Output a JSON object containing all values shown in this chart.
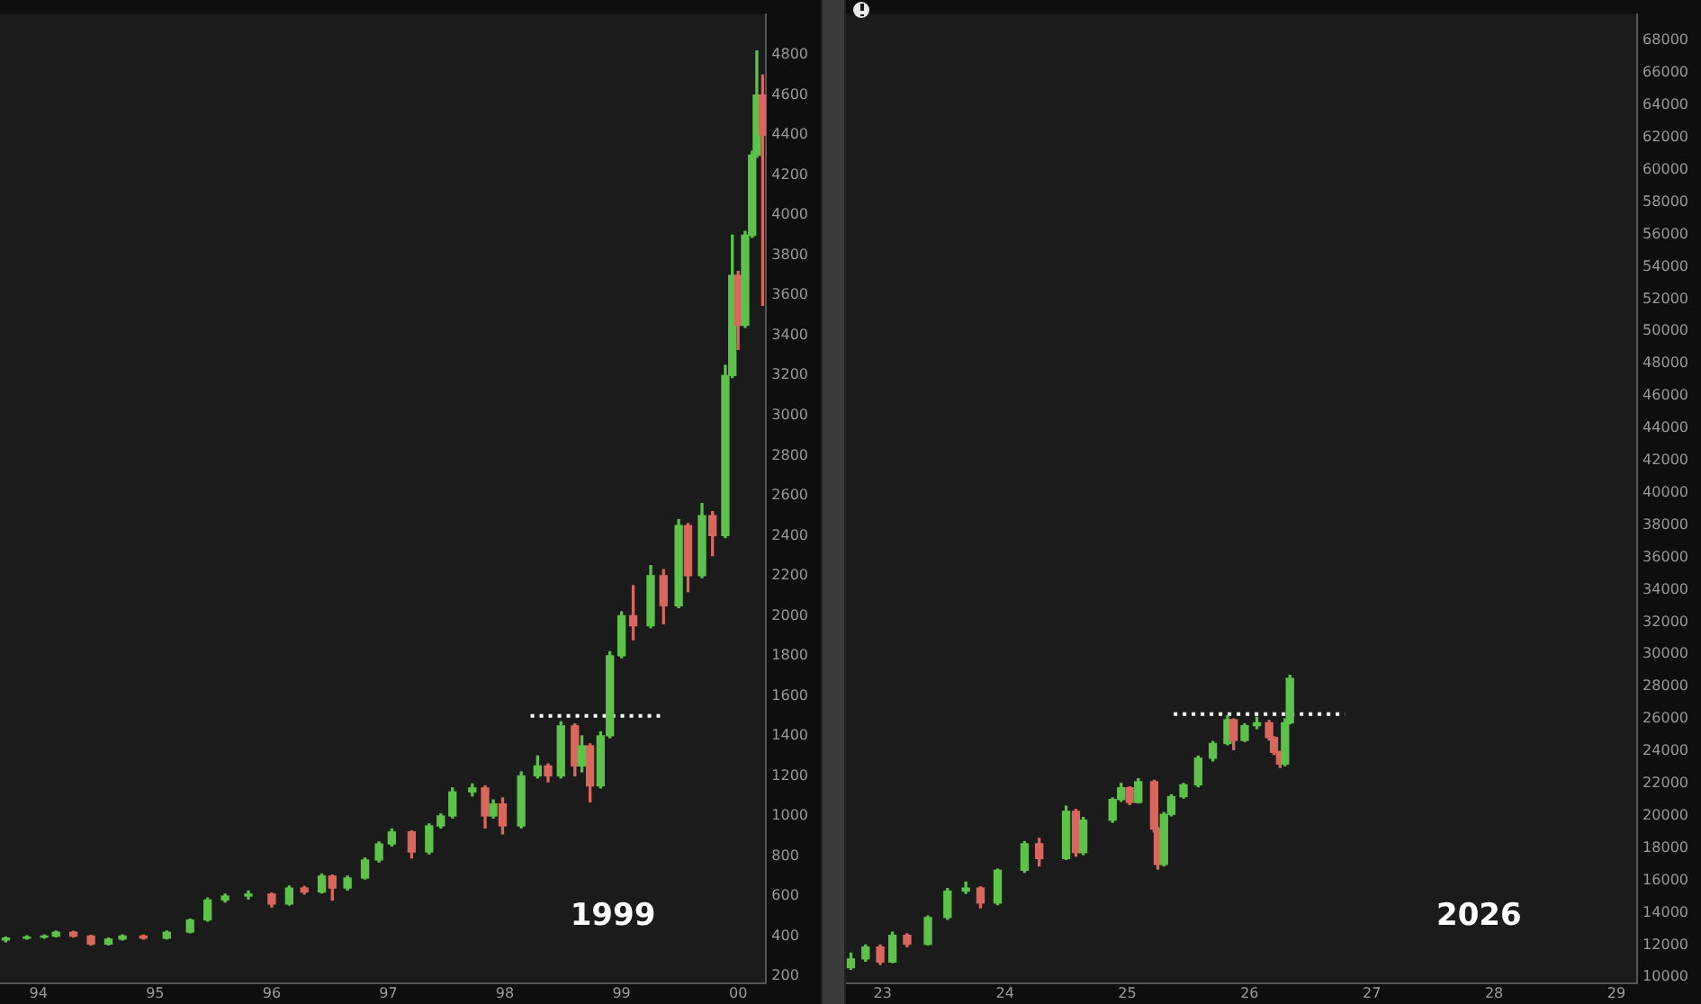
{
  "chart_data": [
    {
      "type": "candlestick",
      "x": [
        1993.72,
        1993.9,
        1994.05,
        1994.15,
        1994.3,
        1994.45,
        1994.6,
        1994.72,
        1994.9,
        1995.1,
        1995.3,
        1995.45,
        1995.6,
        1995.8,
        1996.0,
        1996.15,
        1996.28,
        1996.43,
        1996.52,
        1996.65,
        1996.8,
        1996.92,
        1997.03,
        1997.2,
        1997.35,
        1997.45,
        1997.55,
        1997.72,
        1997.83,
        1997.9,
        1997.98,
        1998.14,
        1998.28,
        1998.37,
        1998.48,
        1998.6,
        1998.66,
        1998.73,
        1998.82,
        1998.9,
        1999.0,
        1999.1,
        1999.25,
        1999.36,
        1999.49,
        1999.57,
        1999.69,
        1999.78,
        1999.89,
        1999.95,
        2000.0,
        2000.06,
        2000.12,
        2000.16,
        2000.21
      ],
      "ohlc": [
        [
          380,
          395,
          372,
          390
        ],
        [
          390,
          402,
          385,
          395
        ],
        [
          395,
          405,
          390,
          400
        ],
        [
          400,
          425,
          396,
          420
        ],
        [
          420,
          424,
          395,
          400
        ],
        [
          400,
          404,
          355,
          360
        ],
        [
          360,
          390,
          356,
          385
        ],
        [
          385,
          406,
          380,
          400
        ],
        [
          400,
          405,
          385,
          390
        ],
        [
          390,
          425,
          386,
          420
        ],
        [
          420,
          485,
          416,
          480
        ],
        [
          480,
          590,
          475,
          580
        ],
        [
          580,
          610,
          570,
          600
        ],
        [
          600,
          625,
          585,
          610
        ],
        [
          610,
          615,
          545,
          560
        ],
        [
          560,
          650,
          555,
          640
        ],
        [
          640,
          648,
          610,
          620
        ],
        [
          620,
          710,
          615,
          700
        ],
        [
          700,
          705,
          580,
          640
        ],
        [
          640,
          700,
          630,
          690
        ],
        [
          690,
          790,
          685,
          780
        ],
        [
          780,
          870,
          770,
          860
        ],
        [
          860,
          935,
          850,
          920
        ],
        [
          920,
          925,
          790,
          820
        ],
        [
          820,
          960,
          810,
          950
        ],
        [
          950,
          1010,
          940,
          1000
        ],
        [
          1000,
          1140,
          990,
          1120
        ],
        [
          1120,
          1160,
          1100,
          1140
        ],
        [
          1140,
          1150,
          940,
          1000
        ],
        [
          1000,
          1080,
          990,
          1060
        ],
        [
          1060,
          1090,
          910,
          950
        ],
        [
          950,
          1220,
          940,
          1200
        ],
        [
          1200,
          1300,
          1190,
          1250
        ],
        [
          1250,
          1260,
          1170,
          1200
        ],
        [
          1200,
          1470,
          1190,
          1450
        ],
        [
          1450,
          1460,
          1200,
          1250
        ],
        [
          1250,
          1400,
          1220,
          1350
        ],
        [
          1350,
          1360,
          1070,
          1150
        ],
        [
          1150,
          1420,
          1140,
          1400
        ],
        [
          1400,
          1820,
          1390,
          1800
        ],
        [
          1800,
          2020,
          1790,
          2000
        ],
        [
          2000,
          2150,
          1880,
          1950
        ],
        [
          1950,
          2250,
          1940,
          2200
        ],
        [
          2200,
          2230,
          1960,
          2050
        ],
        [
          2050,
          2480,
          2040,
          2450
        ],
        [
          2450,
          2460,
          2120,
          2200
        ],
        [
          2200,
          2560,
          2190,
          2500
        ],
        [
          2500,
          2520,
          2300,
          2400
        ],
        [
          2400,
          3250,
          2390,
          3200
        ],
        [
          3200,
          3900,
          3190,
          3700
        ],
        [
          3700,
          3720,
          3330,
          3450
        ],
        [
          3450,
          3920,
          3440,
          3900
        ],
        [
          3900,
          4320,
          3890,
          4300
        ],
        [
          4300,
          4820,
          4290,
          4600
        ],
        [
          4600,
          4700,
          3550,
          4400
        ]
      ],
      "colors": [
        "#5cc24a",
        "#5cc24a",
        "#5cc24a",
        "#5cc24a",
        "#d9675e",
        "#d9675e",
        "#5cc24a",
        "#5cc24a",
        "#d9675e",
        "#5cc24a",
        "#5cc24a",
        "#5cc24a",
        "#5cc24a",
        "#5cc24a",
        "#d9675e",
        "#5cc24a",
        "#d9675e",
        "#5cc24a",
        "#d9675e",
        "#5cc24a",
        "#5cc24a",
        "#5cc24a",
        "#5cc24a",
        "#d9675e",
        "#5cc24a",
        "#5cc24a",
        "#5cc24a",
        "#5cc24a",
        "#d9675e",
        "#5cc24a",
        "#d9675e",
        "#5cc24a",
        "#5cc24a",
        "#d9675e",
        "#5cc24a",
        "#d9675e",
        "#5cc24a",
        "#d9675e",
        "#5cc24a",
        "#5cc24a",
        "#5cc24a",
        "#d9675e",
        "#5cc24a",
        "#d9675e",
        "#5cc24a",
        "#d9675e",
        "#5cc24a",
        "#d9675e",
        "#5cc24a",
        "#5cc24a",
        "#d9675e",
        "#5cc24a",
        "#5cc24a",
        "#5cc24a",
        "#d9675e"
      ],
      "series": [
        {
          "type": "line",
          "x": [
            1998.22,
            1999.33
          ],
          "values": [
            1500,
            1500
          ],
          "color": "#ffffff",
          "line_style": "dotted"
        }
      ],
      "xlim": [
        1993.67,
        2000.24
      ],
      "xticks": [
        {
          "value": 1994,
          "label": "94"
        },
        {
          "value": 1995,
          "label": "95"
        },
        {
          "value": 1996,
          "label": "96"
        },
        {
          "value": 1997,
          "label": "97"
        },
        {
          "value": 1998,
          "label": "98"
        },
        {
          "value": 1999,
          "label": "99"
        },
        {
          "value": 2000,
          "label": "00"
        }
      ],
      "ylim": [
        165,
        5005
      ],
      "yticks": [
        200,
        400,
        600,
        800,
        1000,
        1200,
        1400,
        1600,
        1800,
        2000,
        2200,
        2400,
        2600,
        2800,
        3000,
        3200,
        3400,
        3600,
        3800,
        4000,
        4200,
        4400,
        4600,
        4800
      ],
      "annotations": [
        "1999"
      ]
    },
    {
      "type": "candlestick",
      "x": [
        2022.74,
        2022.86,
        2022.98,
        2023.08,
        2023.2,
        2023.37,
        2023.53,
        2023.68,
        2023.8,
        2023.94,
        2024.16,
        2024.28,
        2024.5,
        2024.58,
        2024.64,
        2024.88,
        2024.95,
        2025.02,
        2025.09,
        2025.22,
        2025.25,
        2025.3,
        2025.36,
        2025.46,
        2025.58,
        2025.7,
        2025.82,
        2025.87,
        2025.96,
        2026.06,
        2026.16,
        2026.2,
        2026.25,
        2026.29,
        2026.33
      ],
      "ohlc": [
        [
          10600,
          11500,
          10500,
          11140
        ],
        [
          11140,
          12000,
          11000,
          11870
        ],
        [
          11870,
          12000,
          10800,
          10950
        ],
        [
          10950,
          12800,
          10900,
          12600
        ],
        [
          12600,
          12700,
          11900,
          12050
        ],
        [
          12050,
          13800,
          12000,
          13700
        ],
        [
          13700,
          15500,
          13600,
          15340
        ],
        [
          15340,
          15900,
          15200,
          15530
        ],
        [
          15530,
          15600,
          14300,
          14600
        ],
        [
          14600,
          16700,
          14500,
          16630
        ],
        [
          16630,
          18400,
          16500,
          18270
        ],
        [
          18270,
          18600,
          16900,
          17350
        ],
        [
          17350,
          20600,
          17300,
          20280
        ],
        [
          20280,
          20400,
          17500,
          17720
        ],
        [
          17720,
          19900,
          17600,
          19730
        ],
        [
          19730,
          21100,
          19600,
          21010
        ],
        [
          21010,
          22000,
          20900,
          21740
        ],
        [
          21740,
          21800,
          20700,
          20830
        ],
        [
          20830,
          22300,
          20800,
          22110
        ],
        [
          22110,
          22200,
          19000,
          19180
        ],
        [
          19180,
          19300,
          16700,
          16990
        ],
        [
          16990,
          20200,
          16900,
          20090
        ],
        [
          20090,
          21300,
          20000,
          21190
        ],
        [
          21190,
          22000,
          21100,
          21920
        ],
        [
          21920,
          23700,
          21800,
          23570
        ],
        [
          23570,
          24600,
          23400,
          24480
        ],
        [
          24480,
          26200,
          24400,
          25950
        ],
        [
          25950,
          26000,
          24100,
          24670
        ],
        [
          24670,
          25700,
          24600,
          25580
        ],
        [
          25580,
          26100,
          25400,
          25760
        ],
        [
          25760,
          25900,
          24700,
          24850
        ],
        [
          24850,
          24900,
          23800,
          23930
        ],
        [
          23930,
          24000,
          23000,
          23210
        ],
        [
          23210,
          26000,
          23100,
          25760
        ],
        [
          25760,
          28700,
          25700,
          28510
        ]
      ],
      "colors": [
        "#5cc24a",
        "#5cc24a",
        "#d9675e",
        "#5cc24a",
        "#d9675e",
        "#5cc24a",
        "#5cc24a",
        "#5cc24a",
        "#d9675e",
        "#5cc24a",
        "#5cc24a",
        "#d9675e",
        "#5cc24a",
        "#d9675e",
        "#5cc24a",
        "#5cc24a",
        "#5cc24a",
        "#d9675e",
        "#5cc24a",
        "#d9675e",
        "#d9675e",
        "#5cc24a",
        "#5cc24a",
        "#5cc24a",
        "#5cc24a",
        "#5cc24a",
        "#5cc24a",
        "#d9675e",
        "#5cc24a",
        "#5cc24a",
        "#d9675e",
        "#d9675e",
        "#d9675e",
        "#5cc24a",
        "#5cc24a"
      ],
      "series": [
        {
          "type": "line",
          "x": [
            2025.38,
            2026.78
          ],
          "values": [
            26300,
            26300
          ],
          "color": "#ffffff",
          "line_style": "dotted"
        }
      ],
      "xlim": [
        2022.7,
        2029.17
      ],
      "xticks": [
        {
          "value": 2023,
          "label": "23"
        },
        {
          "value": 2024,
          "label": "24"
        },
        {
          "value": 2025,
          "label": "25"
        },
        {
          "value": 2026,
          "label": "26"
        },
        {
          "value": 2027,
          "label": "27"
        },
        {
          "value": 2028,
          "label": "28"
        },
        {
          "value": 2029,
          "label": "29"
        }
      ],
      "ylim": [
        9640,
        69650
      ],
      "yticks": [
        10000,
        12000,
        14000,
        16000,
        18000,
        20000,
        22000,
        24000,
        26000,
        28000,
        30000,
        32000,
        34000,
        36000,
        38000,
        40000,
        42000,
        44000,
        46000,
        48000,
        50000,
        52000,
        54000,
        56000,
        58000,
        60000,
        62000,
        64000,
        66000,
        68000
      ],
      "annotations": [
        "2026"
      ]
    }
  ]
}
